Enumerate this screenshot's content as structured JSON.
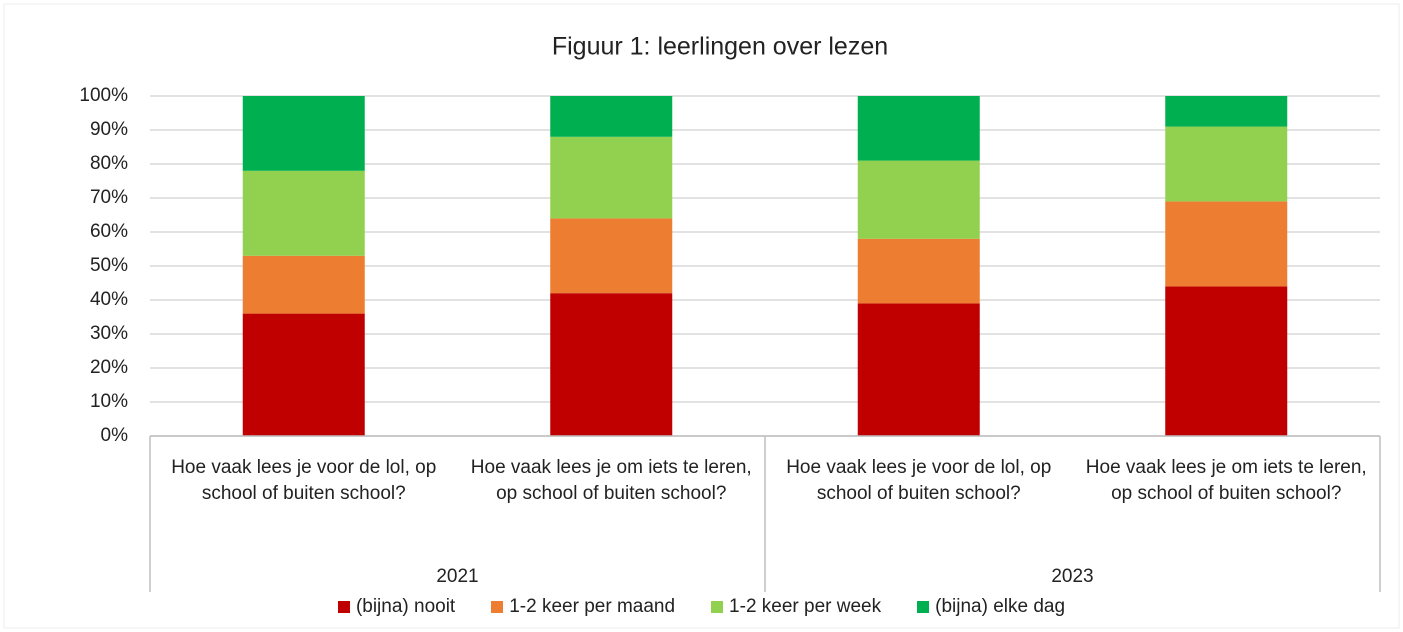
{
  "chart_data": {
    "type": "stacked_bar",
    "title": "Figuur 1: leerlingen over lezen",
    "categories": [
      "Hoe vaak lees je voor de lol, op school of buiten school?",
      "Hoe vaak lees je om iets te leren, op school of buiten school?",
      "Hoe vaak lees je voor de lol, op school of buiten school?",
      "Hoe vaak lees je om iets te leren, op school of buiten school?"
    ],
    "category_groups": [
      "2021",
      "2023"
    ],
    "series": [
      {
        "name": "(bijna) nooit",
        "color": "#c00000",
        "values": [
          36,
          42,
          39,
          44
        ]
      },
      {
        "name": "1-2 keer per maand",
        "color": "#ed7d31",
        "values": [
          17,
          22,
          19,
          25
        ]
      },
      {
        "name": "1-2 keer per week",
        "color": "#92d050",
        "values": [
          25,
          24,
          23,
          22
        ]
      },
      {
        "name": "(bijna) elke dag",
        "color": "#00b050",
        "values": [
          22,
          12,
          19,
          9
        ]
      }
    ],
    "ylim": [
      0,
      100
    ],
    "yticks": [
      {
        "value": 0,
        "label": "0%"
      },
      {
        "value": 10,
        "label": "10%"
      },
      {
        "value": 20,
        "label": "20%"
      },
      {
        "value": 30,
        "label": "30%"
      },
      {
        "value": 40,
        "label": "40%"
      },
      {
        "value": 50,
        "label": "50%"
      },
      {
        "value": 60,
        "label": "60%"
      },
      {
        "value": 70,
        "label": "70%"
      },
      {
        "value": 80,
        "label": "80%"
      },
      {
        "value": 90,
        "label": "90%"
      },
      {
        "value": 100,
        "label": "100%"
      }
    ],
    "grid": true,
    "legend": "bottom"
  }
}
